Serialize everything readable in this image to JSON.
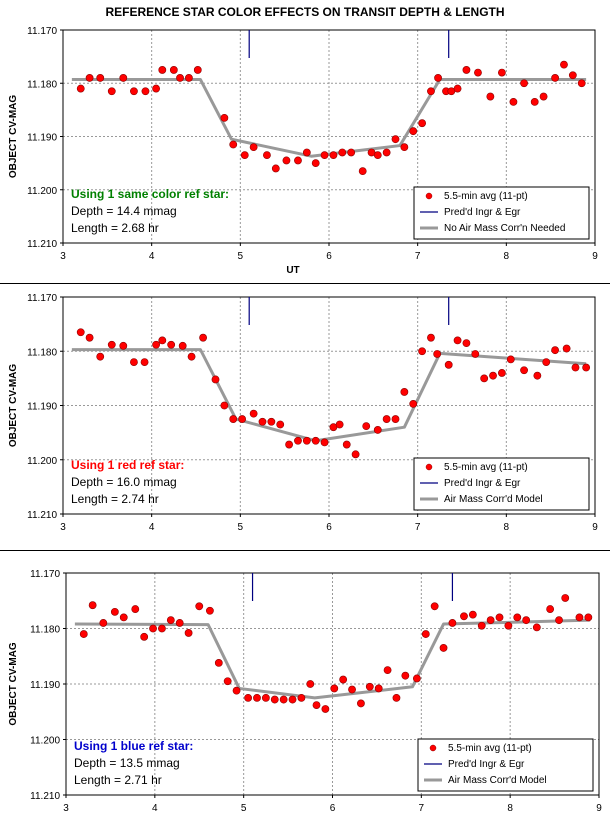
{
  "title": "REFERENCE STAR COLOR EFFECTS ON TRANSIT DEPTH & LENGTH",
  "colors": {
    "point": "#ff0000",
    "model": "#999999",
    "tick": "#000080",
    "grid": "#999999"
  },
  "chart_data": [
    {
      "type": "scatter",
      "title": "",
      "xlabel": "UT",
      "ylabel": "OBJECT CV-MAG",
      "xlim": [
        3,
        9
      ],
      "ylim": [
        11.17,
        11.21
      ],
      "y_inverted": true,
      "grid": true,
      "x_ticks": [
        "3",
        "4",
        "5",
        "6",
        "7",
        "8",
        "9"
      ],
      "y_ticks": [
        "11.170",
        "11.180",
        "11.190",
        "11.200",
        "11.210"
      ],
      "annotation": {
        "heading": "Using 1 same color ref star:",
        "heading_color": "#008000",
        "lines": [
          "Depth = 14.4 mmag",
          "Length = 2.68 hr"
        ]
      },
      "legend": [
        "5.5-min avg (11-pt)",
        "Pred'd Ingr & Egr",
        "No Air Mass Corr'n Needed"
      ],
      "legend_position": "bottom-right",
      "ingress_egress": [
        5.1,
        7.35
      ],
      "model": {
        "x": [
          3.1,
          4.55,
          4.9,
          5.8,
          6.8,
          7.25,
          8.9
        ],
        "y": [
          11.1793,
          11.1793,
          11.1905,
          11.1937,
          11.1917,
          11.1793,
          11.1793
        ]
      },
      "series": [
        {
          "name": "5.5-min avg (11-pt)",
          "x": [
            3.2,
            3.3,
            3.42,
            3.55,
            3.68,
            3.8,
            3.93,
            4.05,
            4.12,
            4.25,
            4.32,
            4.42,
            4.52,
            4.82,
            4.92,
            5.05,
            5.15,
            5.3,
            5.4,
            5.52,
            5.65,
            5.75,
            5.85,
            5.95,
            6.05,
            6.15,
            6.25,
            6.38,
            6.48,
            6.55,
            6.65,
            6.75,
            6.85,
            6.95,
            7.05,
            7.15,
            7.23,
            7.32,
            7.38,
            7.45,
            7.55,
            7.68,
            7.82,
            7.95,
            8.08,
            8.2,
            8.32,
            8.42,
            8.55,
            8.65,
            8.75,
            8.85
          ],
          "y": [
            11.181,
            11.179,
            11.179,
            11.1815,
            11.179,
            11.1815,
            11.1815,
            11.181,
            11.1775,
            11.1775,
            11.179,
            11.179,
            11.1775,
            11.1865,
            11.1915,
            11.1935,
            11.192,
            11.1935,
            11.196,
            11.1945,
            11.1945,
            11.193,
            11.195,
            11.1935,
            11.1935,
            11.193,
            11.193,
            11.1965,
            11.193,
            11.1935,
            11.193,
            11.1905,
            11.192,
            11.189,
            11.1875,
            11.1815,
            11.179,
            11.1815,
            11.1815,
            11.181,
            11.1775,
            11.178,
            11.1825,
            11.178,
            11.1835,
            11.18,
            11.1835,
            11.1825,
            11.179,
            11.1765,
            11.1785,
            11.18
          ]
        }
      ]
    },
    {
      "type": "scatter",
      "title": "",
      "xlabel": "",
      "ylabel": "OBJECT CV-MAG",
      "xlim": [
        3,
        9
      ],
      "ylim": [
        11.17,
        11.21
      ],
      "y_inverted": true,
      "grid": true,
      "x_ticks": [
        "3",
        "4",
        "5",
        "6",
        "7",
        "8",
        "9"
      ],
      "y_ticks": [
        "11.170",
        "11.180",
        "11.190",
        "11.200",
        "11.210"
      ],
      "annotation": {
        "heading": "Using 1 red ref star:",
        "heading_color": "#ff0000",
        "lines": [
          "Depth = 16.0 mmag",
          "Length = 2.74 hr"
        ]
      },
      "legend": [
        "5.5-min avg (11-pt)",
        "Pred'd Ingr & Egr",
        "Air Mass Corr'd Model"
      ],
      "legend_position": "bottom-right",
      "ingress_egress": [
        5.1,
        7.35
      ],
      "model": {
        "x": [
          3.1,
          4.55,
          4.95,
          5.85,
          6.85,
          7.25,
          8.9
        ],
        "y": [
          11.1797,
          11.1797,
          11.1925,
          11.1965,
          11.194,
          11.1804,
          11.1823
        ]
      },
      "series": [
        {
          "name": "5.5-min avg (11-pt)",
          "x": [
            3.2,
            3.3,
            3.42,
            3.55,
            3.68,
            3.8,
            3.92,
            4.05,
            4.12,
            4.22,
            4.35,
            4.45,
            4.58,
            4.72,
            4.82,
            4.92,
            5.02,
            5.15,
            5.25,
            5.35,
            5.45,
            5.55,
            5.65,
            5.75,
            5.85,
            5.95,
            6.05,
            6.12,
            6.2,
            6.3,
            6.42,
            6.55,
            6.65,
            6.75,
            6.85,
            6.95,
            7.05,
            7.15,
            7.22,
            7.35,
            7.45,
            7.55,
            7.65,
            7.75,
            7.85,
            7.95,
            8.05,
            8.2,
            8.35,
            8.45,
            8.55,
            8.68,
            8.78,
            8.9
          ],
          "y": [
            11.1765,
            11.1775,
            11.181,
            11.1788,
            11.179,
            11.182,
            11.182,
            11.1788,
            11.178,
            11.1788,
            11.179,
            11.181,
            11.1775,
            11.1852,
            11.19,
            11.1925,
            11.1925,
            11.1915,
            11.193,
            11.193,
            11.1935,
            11.1972,
            11.1965,
            11.1965,
            11.1965,
            11.1968,
            11.194,
            11.1935,
            11.1972,
            11.199,
            11.1938,
            11.1945,
            11.1925,
            11.1925,
            11.1875,
            11.1897,
            11.18,
            11.1775,
            11.1805,
            11.1825,
            11.178,
            11.1785,
            11.1805,
            11.185,
            11.1845,
            11.184,
            11.1815,
            11.1835,
            11.1845,
            11.182,
            11.1798,
            11.1795,
            11.183,
            11.183
          ]
        }
      ]
    },
    {
      "type": "scatter",
      "title": "",
      "xlabel": "",
      "ylabel": "OBJECT CV-MAG",
      "xlim": [
        3,
        9
      ],
      "ylim": [
        11.17,
        11.21
      ],
      "y_inverted": true,
      "grid": true,
      "x_ticks": [
        "3",
        "4",
        "5",
        "6",
        "7",
        "8",
        "9"
      ],
      "y_ticks": [
        "11.170",
        "11.180",
        "11.190",
        "11.200",
        "11.210"
      ],
      "annotation": {
        "heading": "Using 1 blue ref star:",
        "heading_color": "#0000cc",
        "lines": [
          "Depth = 13.5 mmag",
          "Length = 2.71 hr"
        ]
      },
      "legend": [
        "5.5-min avg (11-pt)",
        "Pred'd Ingr & Egr",
        "Air Mass Corr'd Model"
      ],
      "legend_position": "bottom-right",
      "ingress_egress": [
        5.1,
        7.35
      ],
      "model": {
        "x": [
          3.1,
          4.6,
          4.95,
          5.8,
          6.9,
          7.25,
          8.9
        ],
        "y": [
          11.1792,
          11.1793,
          11.1908,
          11.1925,
          11.1905,
          11.1792,
          11.1785
        ]
      },
      "series": [
        {
          "name": "5.5-min avg (11-pt)",
          "x": [
            3.2,
            3.3,
            3.42,
            3.55,
            3.65,
            3.78,
            3.88,
            3.98,
            4.08,
            4.18,
            4.28,
            4.38,
            4.5,
            4.62,
            4.72,
            4.82,
            4.92,
            5.05,
            5.15,
            5.25,
            5.35,
            5.45,
            5.55,
            5.65,
            5.75,
            5.82,
            5.92,
            6.02,
            6.12,
            6.22,
            6.32,
            6.42,
            6.52,
            6.62,
            6.72,
            6.82,
            6.95,
            7.05,
            7.15,
            7.25,
            7.35,
            7.48,
            7.58,
            7.68,
            7.78,
            7.88,
            7.98,
            8.08,
            8.18,
            8.3,
            8.45,
            8.55,
            8.62,
            8.78,
            8.88
          ],
          "y": [
            11.181,
            11.1758,
            11.179,
            11.177,
            11.178,
            11.1765,
            11.1815,
            11.18,
            11.18,
            11.1785,
            11.179,
            11.1808,
            11.176,
            11.1768,
            11.1862,
            11.1895,
            11.1912,
            11.1925,
            11.1925,
            11.1925,
            11.1928,
            11.1928,
            11.1928,
            11.1925,
            11.19,
            11.1938,
            11.1945,
            11.1908,
            11.1892,
            11.191,
            11.1935,
            11.1905,
            11.1908,
            11.1875,
            11.1925,
            11.1885,
            11.189,
            11.181,
            11.176,
            11.1835,
            11.179,
            11.1778,
            11.1775,
            11.1795,
            11.1785,
            11.178,
            11.1795,
            11.178,
            11.1785,
            11.1798,
            11.1765,
            11.1785,
            11.1745,
            11.178,
            11.178
          ]
        }
      ]
    }
  ]
}
